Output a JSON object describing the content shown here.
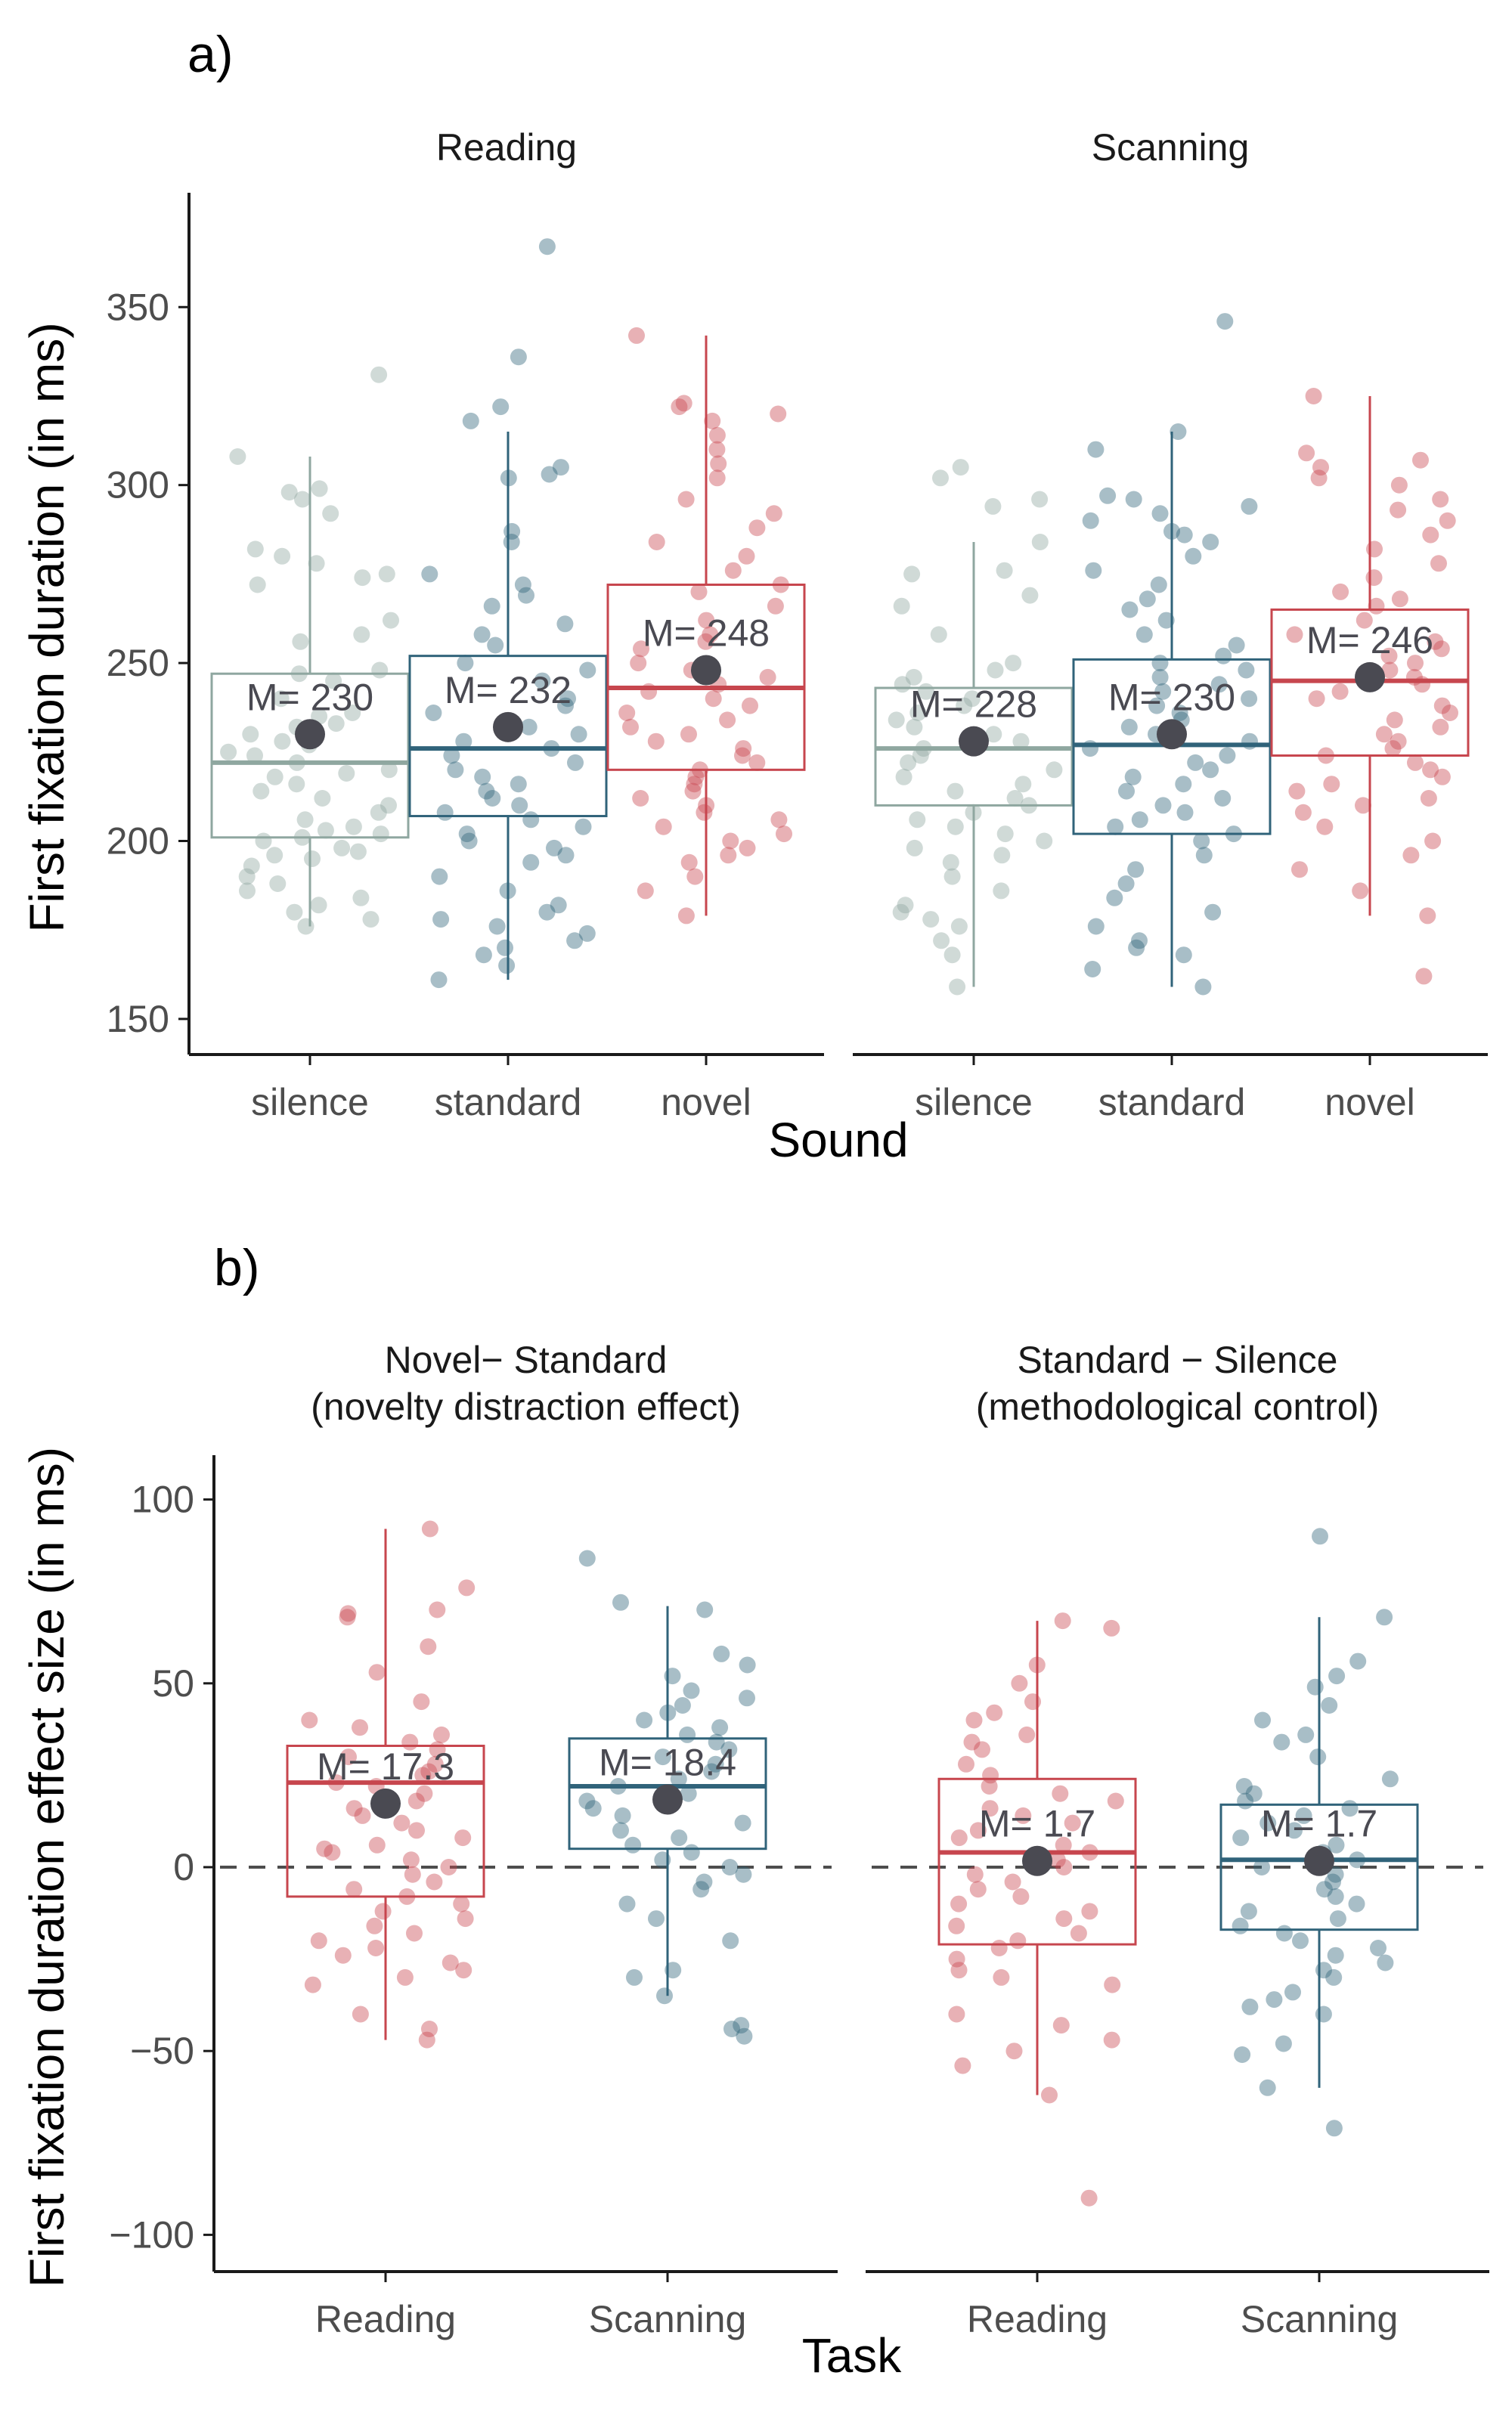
{
  "chart_data": [
    {
      "panel_label": "a)",
      "type": "box",
      "xlabel": "Sound",
      "ylabel": "First fixation duration (in ms)",
      "ylim": [
        140,
        380
      ],
      "yticks": [
        150,
        200,
        250,
        300,
        350
      ],
      "categories": [
        "silence",
        "standard",
        "novel"
      ],
      "facets": [
        {
          "name": "Reading",
          "boxes": [
            {
              "category": "silence",
              "q1": 201,
              "median": 222,
              "q3": 247,
              "whisker_low": 176,
              "whisker_high": 308,
              "mean": 230,
              "mean_label": "M= 230",
              "color": "#8fa7a0",
              "points": [
                331,
                308,
                299,
                298,
                296,
                292,
                282,
                280,
                278,
                275,
                274,
                272,
                262,
                258,
                256,
                248,
                247,
                245,
                240,
                236,
                235,
                233,
                232,
                230,
                228,
                227,
                225,
                224,
                222,
                220,
                219,
                218,
                216,
                214,
                212,
                210,
                208,
                206,
                204,
                203,
                202,
                201,
                200,
                198,
                197,
                196,
                195,
                193,
                190,
                188,
                186,
                184,
                182,
                180,
                178,
                176
              ]
            },
            {
              "category": "standard",
              "q1": 207,
              "median": 226,
              "q3": 252,
              "whisker_low": 161,
              "whisker_high": 315,
              "mean": 232,
              "mean_label": "M= 232",
              "color": "#30637a",
              "points": [
                367,
                336,
                322,
                318,
                305,
                303,
                302,
                287,
                284,
                275,
                272,
                269,
                266,
                261,
                258,
                255,
                250,
                248,
                245,
                240,
                238,
                236,
                232,
                230,
                228,
                226,
                224,
                222,
                220,
                218,
                216,
                214,
                212,
                210,
                208,
                206,
                204,
                202,
                200,
                198,
                196,
                194,
                190,
                186,
                182,
                180,
                178,
                176,
                174,
                172,
                170,
                168,
                165,
                161
              ]
            },
            {
              "category": "novel",
              "q1": 220,
              "median": 243,
              "q3": 272,
              "whisker_low": 179,
              "whisker_high": 342,
              "mean": 248,
              "mean_label": "M= 248",
              "color": "#c7464e",
              "points": [
                342,
                323,
                322,
                320,
                318,
                314,
                310,
                306,
                302,
                296,
                292,
                288,
                284,
                280,
                276,
                272,
                270,
                266,
                262,
                258,
                256,
                254,
                250,
                248,
                246,
                244,
                242,
                240,
                238,
                236,
                234,
                232,
                230,
                228,
                226,
                224,
                222,
                220,
                218,
                216,
                214,
                212,
                210,
                208,
                206,
                204,
                202,
                200,
                198,
                196,
                194,
                190,
                186,
                179
              ]
            }
          ]
        },
        {
          "name": "Scanning",
          "boxes": [
            {
              "category": "silence",
              "q1": 210,
              "median": 226,
              "q3": 243,
              "whisker_low": 159,
              "whisker_high": 284,
              "mean": 228,
              "mean_label": "M= 228",
              "color": "#8fa7a0",
              "points": [
                305,
                302,
                296,
                294,
                284,
                276,
                275,
                269,
                266,
                258,
                250,
                248,
                246,
                244,
                242,
                240,
                238,
                236,
                234,
                232,
                230,
                228,
                226,
                224,
                222,
                220,
                218,
                216,
                214,
                212,
                210,
                208,
                206,
                204,
                202,
                200,
                198,
                196,
                194,
                190,
                186,
                182,
                180,
                178,
                176,
                172,
                168,
                159
              ]
            },
            {
              "category": "standard",
              "q1": 202,
              "median": 227,
              "q3": 251,
              "whisker_low": 159,
              "whisker_high": 315,
              "mean": 230,
              "mean_label": "M= 230",
              "color": "#30637a",
              "points": [
                346,
                315,
                310,
                297,
                296,
                294,
                292,
                290,
                287,
                286,
                284,
                280,
                276,
                272,
                268,
                265,
                262,
                258,
                255,
                252,
                250,
                248,
                246,
                244,
                242,
                240,
                238,
                236,
                234,
                232,
                230,
                228,
                226,
                224,
                222,
                220,
                218,
                216,
                214,
                212,
                210,
                208,
                206,
                204,
                202,
                200,
                196,
                192,
                188,
                184,
                180,
                176,
                172,
                170,
                168,
                164,
                159
              ]
            },
            {
              "category": "novel",
              "q1": 224,
              "median": 245,
              "q3": 265,
              "whisker_low": 179,
              "whisker_high": 325,
              "mean": 246,
              "mean_label": "M= 246",
              "color": "#c7464e",
              "points": [
                325,
                309,
                307,
                305,
                302,
                300,
                296,
                293,
                290,
                286,
                282,
                278,
                274,
                270,
                268,
                266,
                262,
                258,
                256,
                254,
                252,
                250,
                248,
                246,
                244,
                242,
                240,
                238,
                236,
                234,
                232,
                230,
                228,
                226,
                224,
                222,
                220,
                218,
                216,
                214,
                212,
                210,
                208,
                204,
                200,
                196,
                192,
                186,
                179,
                162
              ]
            }
          ]
        }
      ]
    },
    {
      "panel_label": "b)",
      "type": "box",
      "xlabel": "Task",
      "ylabel": "First fixation duration effect size (in ms)",
      "ylim": [
        -110,
        110
      ],
      "yticks": [
        -100,
        -50,
        0,
        50,
        100
      ],
      "reference_line": 0,
      "categories": [
        "Reading",
        "Scanning"
      ],
      "facets": [
        {
          "name_lines": [
            "Novel− Standard",
            "(novelty distraction effect)"
          ],
          "boxes": [
            {
              "category": "Reading",
              "q1": -8,
              "median": 23,
              "q3": 33,
              "whisker_low": -47,
              "whisker_high": 92,
              "mean": 17.3,
              "mean_label": "M= 17.3",
              "color": "#c7464e",
              "points": [
                92,
                76,
                70,
                69,
                68,
                60,
                53,
                45,
                40,
                38,
                36,
                34,
                32,
                30,
                28,
                26,
                25,
                23,
                22,
                20,
                18,
                16,
                14,
                12,
                10,
                8,
                6,
                5,
                4,
                2,
                0,
                -2,
                -4,
                -6,
                -8,
                -10,
                -12,
                -14,
                -16,
                -18,
                -20,
                -22,
                -24,
                -26,
                -28,
                -30,
                -32,
                -40,
                -44,
                -47
              ]
            },
            {
              "category": "Scanning",
              "q1": 5,
              "median": 22,
              "q3": 35,
              "whisker_low": -35,
              "whisker_high": 71,
              "mean": 18.4,
              "mean_label": "M= 18.4",
              "color": "#30637a",
              "points": [
                84,
                72,
                70,
                58,
                55,
                52,
                48,
                46,
                44,
                42,
                40,
                38,
                36,
                34,
                32,
                30,
                28,
                26,
                24,
                22,
                20,
                18,
                16,
                14,
                12,
                10,
                8,
                6,
                4,
                2,
                0,
                -2,
                -4,
                -6,
                -10,
                -14,
                -20,
                -28,
                -30,
                -35,
                -43,
                -44,
                -46
              ]
            }
          ]
        },
        {
          "name_lines": [
            "Standard − Silence",
            "(methodological control)"
          ],
          "boxes": [
            {
              "category": "Reading",
              "q1": -21,
              "median": 4,
              "q3": 24,
              "whisker_low": -62,
              "whisker_high": 67,
              "mean": 1.7,
              "mean_label": "M= 1.7",
              "color": "#c7464e",
              "points": [
                67,
                65,
                55,
                50,
                45,
                42,
                40,
                36,
                34,
                32,
                28,
                25,
                22,
                20,
                18,
                16,
                14,
                12,
                10,
                8,
                6,
                4,
                2,
                0,
                -2,
                -4,
                -6,
                -8,
                -10,
                -12,
                -14,
                -16,
                -18,
                -20,
                -22,
                -25,
                -28,
                -30,
                -32,
                -40,
                -43,
                -47,
                -50,
                -54,
                -62,
                -90
              ]
            },
            {
              "category": "Scanning",
              "q1": -17,
              "median": 2,
              "q3": 17,
              "whisker_low": -60,
              "whisker_high": 68,
              "mean": 1.7,
              "mean_label": "M= 1.7",
              "color": "#30637a",
              "points": [
                90,
                68,
                56,
                52,
                49,
                44,
                40,
                36,
                34,
                30,
                24,
                22,
                20,
                18,
                16,
                14,
                12,
                10,
                8,
                6,
                4,
                2,
                0,
                -2,
                -4,
                -6,
                -8,
                -10,
                -12,
                -14,
                -16,
                -18,
                -20,
                -22,
                -24,
                -26,
                -28,
                -30,
                -34,
                -36,
                -38,
                -40,
                -48,
                -51,
                -60,
                -71
              ]
            }
          ]
        }
      ]
    }
  ],
  "colors": {
    "mean_dot": "#4a4a52",
    "axis": "#1a1a1a",
    "reference_line": "#4d4d4d"
  }
}
